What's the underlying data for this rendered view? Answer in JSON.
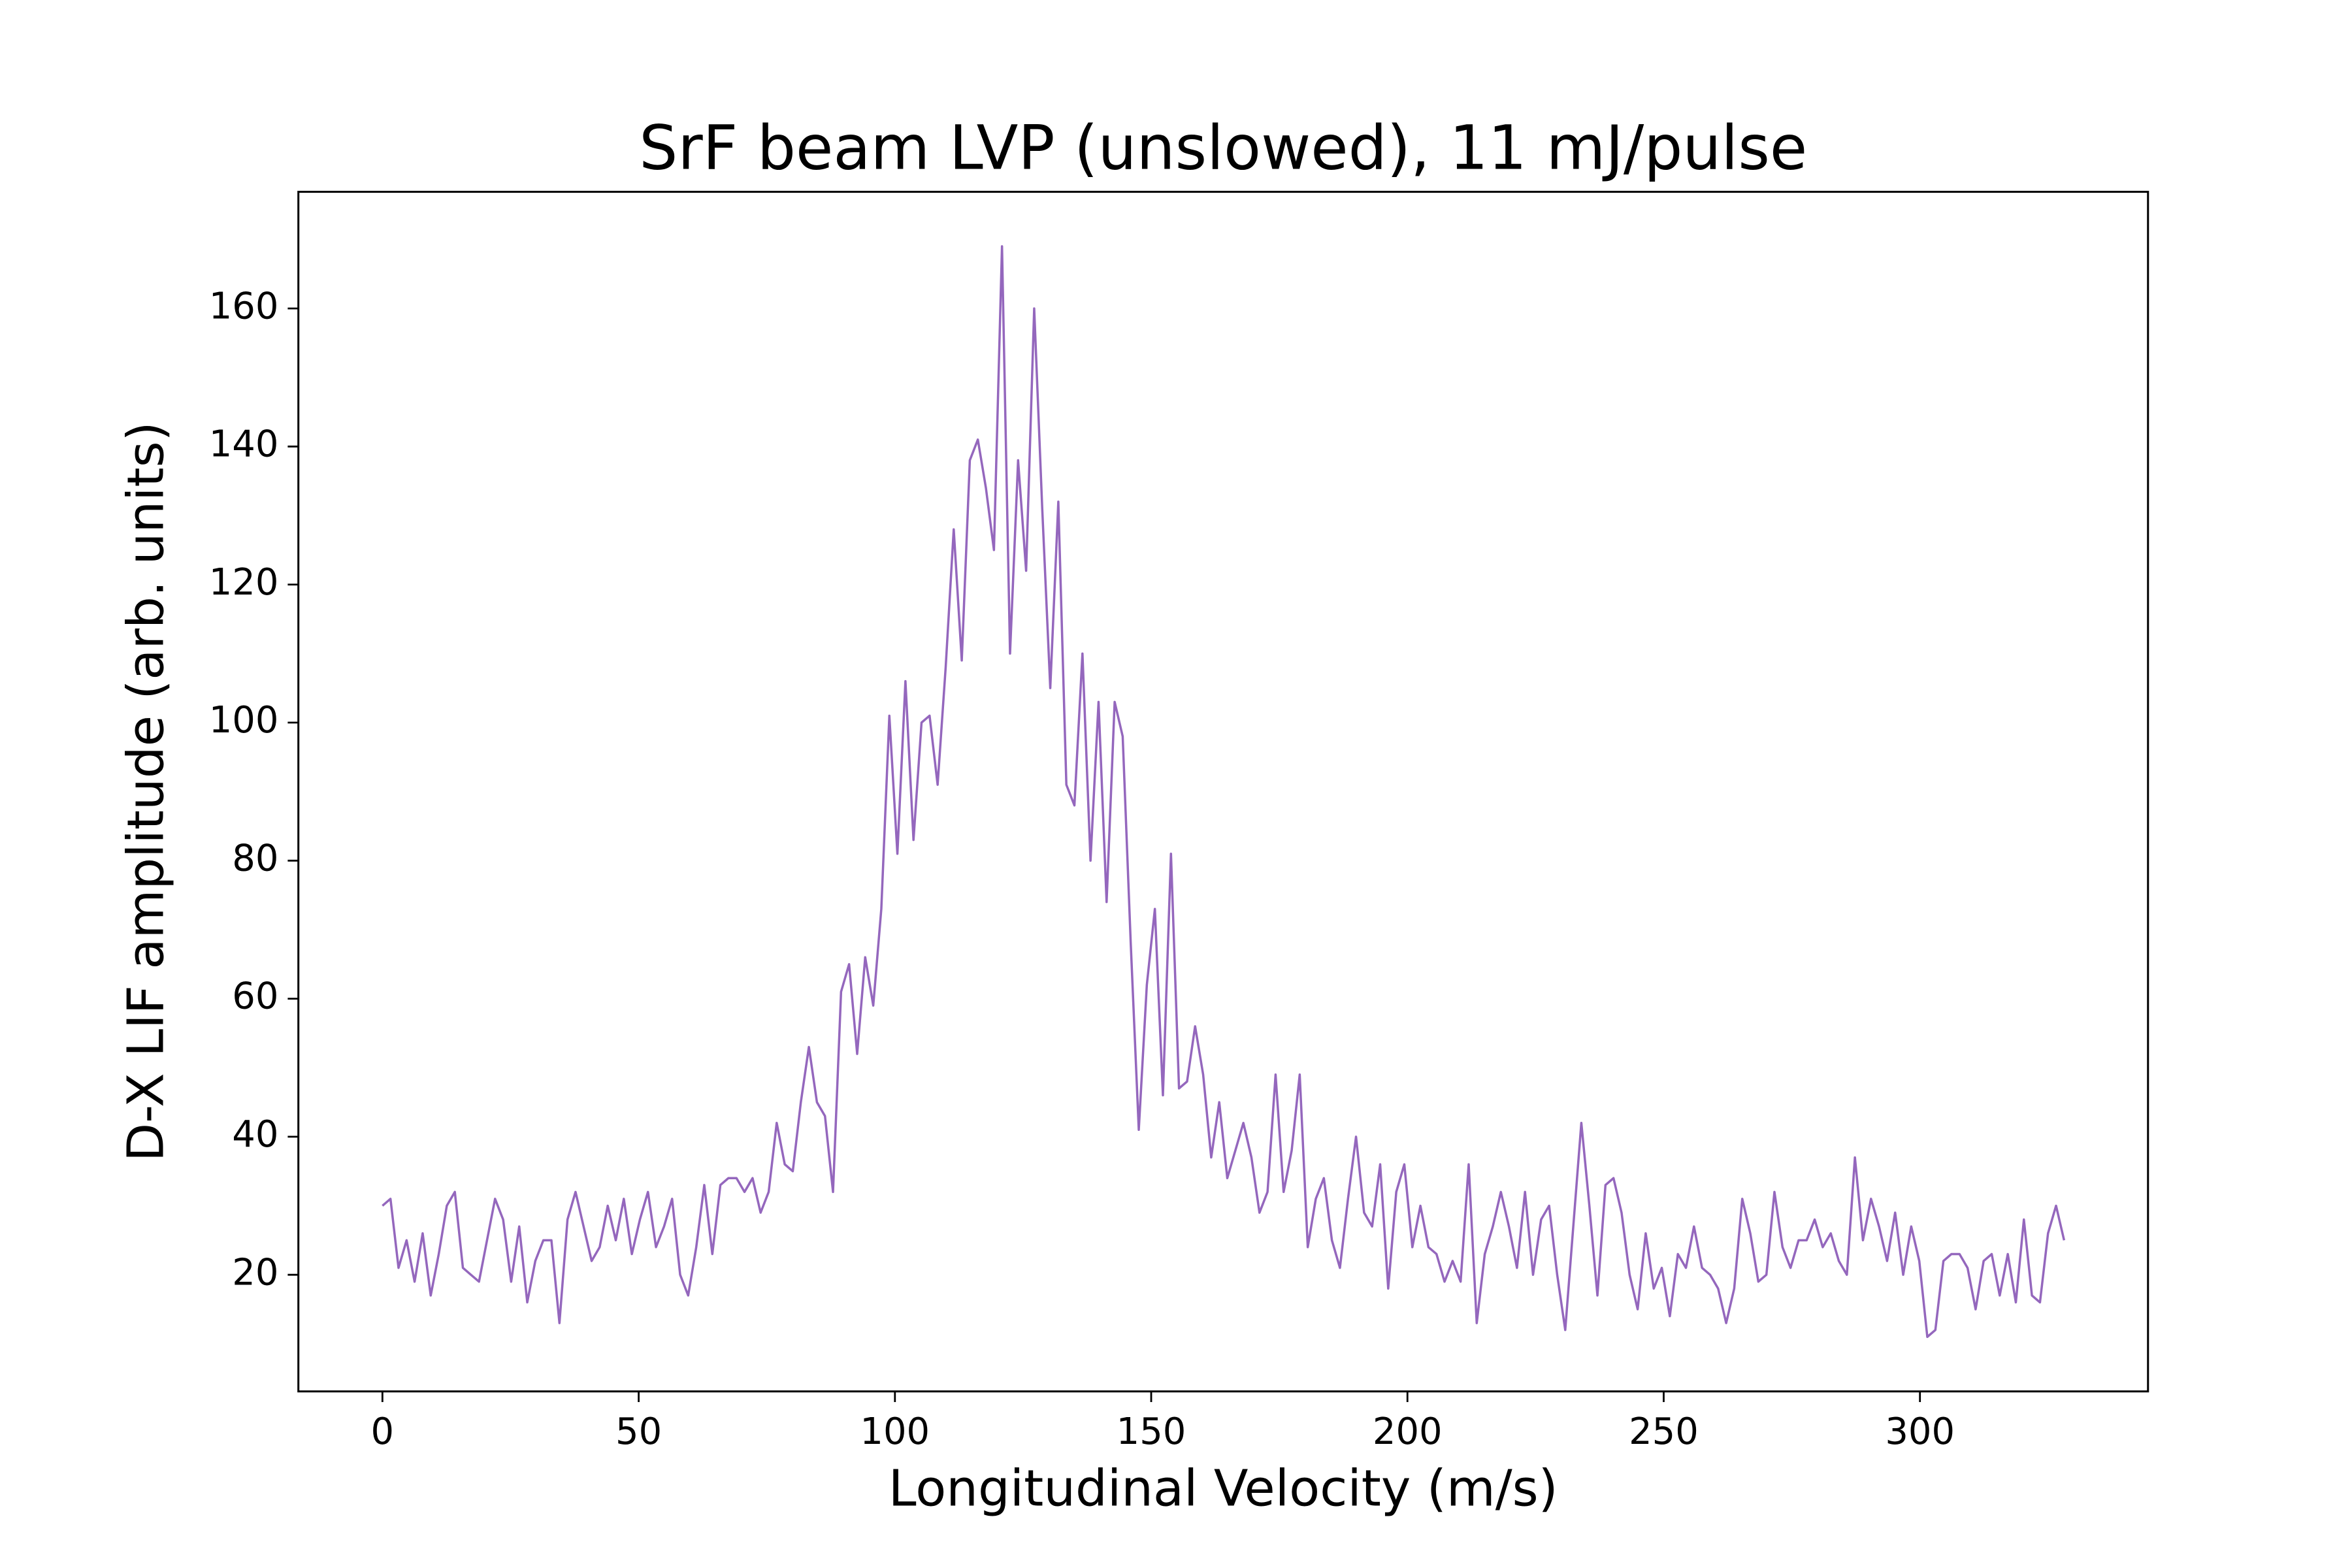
{
  "chart_data": {
    "type": "line",
    "title": "SrF beam LVP (unslowed), 11 mJ/pulse",
    "x_label": "Longitudinal Velocity (m/s)",
    "y_label": "D-X LIF amplitude (arb. units)",
    "color": "#9467bd",
    "x": [
      0,
      1.57,
      3.14,
      4.71,
      6.28,
      7.85,
      9.42,
      10.99,
      12.56,
      14.13,
      15.7,
      17.27,
      18.84,
      20.41,
      21.98,
      23.55,
      25.12,
      26.69,
      28.26,
      29.83,
      31.4,
      32.97,
      34.54,
      36.11,
      37.68,
      39.25,
      40.82,
      42.39,
      43.96,
      45.53,
      47.1,
      48.67,
      50.24,
      51.81,
      53.38,
      54.95,
      56.52,
      58.09,
      59.66,
      61.23,
      62.8,
      64.37,
      65.94,
      67.51,
      69.08,
      70.65,
      72.22,
      73.79,
      75.36,
      76.93,
      78.5,
      80.07,
      81.64,
      83.21,
      84.78,
      86.35,
      87.92,
      89.49,
      91.06,
      92.63,
      94.2,
      95.77,
      97.34,
      98.91,
      100.48,
      102.05,
      103.62,
      105.19,
      106.76,
      108.33,
      109.9,
      111.47,
      113.04,
      114.61,
      116.18,
      117.75,
      119.32,
      120.89,
      122.46,
      124.03,
      125.6,
      127.17,
      128.74,
      130.31,
      131.88,
      133.45,
      135.02,
      136.59,
      138.16,
      139.73,
      141.3,
      142.87,
      144.44,
      146.01,
      147.58,
      149.15,
      150.72,
      152.29,
      153.86,
      155.43,
      157,
      158.57,
      160.14,
      161.71,
      163.28,
      164.85,
      166.42,
      167.99,
      169.56,
      171.13,
      172.7,
      174.27,
      175.84,
      177.41,
      178.98,
      180.55,
      182.12,
      183.69,
      185.26,
      186.83,
      188.4,
      189.97,
      191.54,
      193.11,
      194.68,
      196.25,
      197.82,
      199.39,
      200.96,
      202.53,
      204.1,
      205.67,
      207.24,
      208.81,
      210.38,
      211.95,
      213.52,
      215.09,
      216.66,
      218.23,
      219.8,
      221.37,
      222.94,
      224.51,
      226.08,
      227.65,
      229.22,
      230.79,
      232.36,
      233.93,
      235.5,
      237.07,
      238.64,
      240.21,
      241.78,
      243.35,
      244.92,
      246.49,
      248.06,
      249.63,
      251.2,
      252.77,
      254.34,
      255.91,
      257.48,
      259.05,
      260.62,
      262.19,
      263.76,
      265.33,
      266.9,
      268.47,
      270.04,
      271.61,
      273.18,
      274.75,
      276.32,
      277.89,
      279.46,
      281.03,
      282.6,
      284.17,
      285.74,
      287.31,
      288.88,
      290.45,
      292.02,
      293.59,
      295.16,
      296.73,
      298.3,
      299.87,
      301.44,
      303.01,
      304.58,
      306.15,
      307.72,
      309.29,
      310.86,
      312.43,
      314,
      315.57,
      317.14,
      318.71,
      320.28,
      321.85,
      323.42,
      324.99,
      326.56,
      328.13
    ],
    "values": [
      30,
      31,
      21,
      25,
      19,
      26,
      17,
      23,
      30,
      32,
      21,
      20,
      19,
      25,
      31,
      28,
      19,
      27,
      16,
      22,
      25,
      25,
      13,
      28,
      32,
      27,
      22,
      24,
      30,
      25,
      31,
      23,
      28,
      32,
      24,
      27,
      31,
      20,
      17,
      24,
      33,
      23,
      33,
      34,
      34,
      32,
      34,
      29,
      32,
      42,
      36,
      35,
      45,
      53,
      45,
      43,
      32,
      61,
      65,
      52,
      66,
      59,
      73,
      101,
      81,
      106,
      83,
      100,
      101,
      91,
      108,
      128,
      109,
      138,
      141,
      134,
      125,
      169,
      110,
      138,
      122,
      160,
      131,
      105,
      132,
      91,
      88,
      110,
      80,
      103,
      74,
      103,
      98,
      68,
      41,
      62,
      73,
      46,
      81,
      47,
      48,
      56,
      49,
      37,
      45,
      34,
      38,
      42,
      37,
      29,
      32,
      49,
      32,
      38,
      49,
      24,
      31,
      34,
      25,
      21,
      31,
      40,
      29,
      27,
      36,
      18,
      32,
      36,
      24,
      30,
      24,
      23,
      19,
      22,
      19,
      36,
      13,
      23,
      27,
      32,
      27,
      21,
      32,
      20,
      28,
      30,
      20,
      12,
      27,
      42,
      30,
      17,
      33,
      34,
      29,
      20,
      15,
      26,
      18,
      21,
      14,
      23,
      21,
      27,
      21,
      20,
      18,
      13,
      18,
      31,
      26,
      19,
      20,
      32,
      24,
      21,
      25,
      25,
      28,
      24,
      26,
      22,
      20,
      37,
      25,
      31,
      27,
      22,
      29,
      20,
      27,
      22,
      11,
      12,
      22,
      23,
      23,
      21,
      15,
      22,
      23,
      17,
      23,
      16,
      28,
      17,
      16,
      26,
      30,
      25
    ],
    "xlim": [
      -16.4,
      344.5
    ],
    "ylim": [
      3.1,
      176.9
    ],
    "xticks": [
      0,
      50,
      100,
      150,
      200,
      250,
      300
    ],
    "yticks": [
      20,
      40,
      60,
      80,
      100,
      120,
      140,
      160
    ],
    "grid": false
  }
}
